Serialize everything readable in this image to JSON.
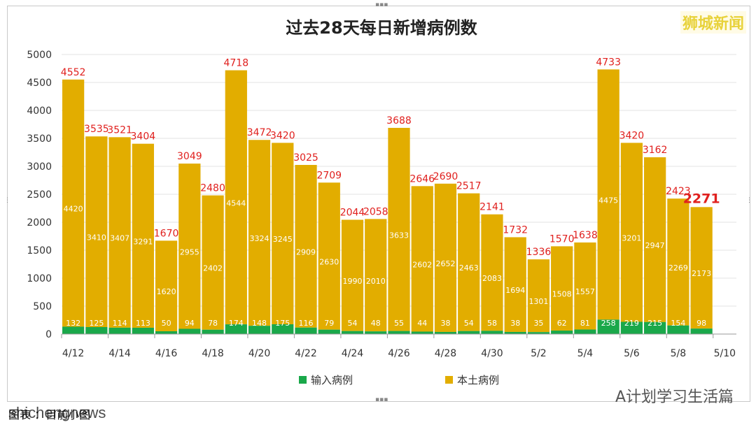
{
  "brand_label": "狮城新闻",
  "footer_caption": "图表 ：目前小图",
  "watermark_left": "shichengnews",
  "watermark_right": "A计划学习生活篇",
  "colors": {
    "imported": "#1aa84a",
    "local": "#e2ad00",
    "total_label": "#e0201e",
    "inner_label": "#ffffff"
  },
  "chart_data": {
    "type": "bar",
    "stacked": true,
    "title": "过去28天每日新增病例数",
    "ylim": [
      0,
      5000
    ],
    "yticks": [
      0,
      500,
      1000,
      1500,
      2000,
      2500,
      3000,
      3500,
      4000,
      4500,
      5000
    ],
    "xtick_labels": [
      "4/12",
      "4/14",
      "4/16",
      "4/18",
      "4/20",
      "4/22",
      "4/24",
      "4/26",
      "4/28",
      "4/30",
      "5/2",
      "5/4",
      "5/6",
      "5/8",
      "5/10"
    ],
    "series": [
      {
        "name": "输入病例",
        "values": [
          132,
          125,
          114,
          113,
          50,
          94,
          78,
          174,
          148,
          175,
          116,
          79,
          54,
          48,
          55,
          44,
          38,
          54,
          58,
          38,
          35,
          62,
          81,
          258,
          219,
          215,
          154,
          98
        ]
      },
      {
        "name": "本土病例",
        "values": [
          4420,
          3410,
          3407,
          3291,
          1620,
          2955,
          2402,
          4544,
          3324,
          3245,
          2909,
          2630,
          1990,
          2010,
          3633,
          2602,
          2652,
          2463,
          2083,
          1694,
          1301,
          1508,
          1557,
          4475,
          3201,
          2947,
          2269,
          2173
        ]
      }
    ],
    "totals": [
      4552,
      3535,
      3521,
      3404,
      1670,
      3049,
      2480,
      4718,
      3472,
      3420,
      3025,
      2709,
      2044,
      2058,
      3688,
      2646,
      2690,
      2517,
      2141,
      1732,
      1336,
      1570,
      1638,
      4733,
      3420,
      3162,
      2423,
      2271
    ],
    "legend_position": "bottom",
    "grid": true
  }
}
